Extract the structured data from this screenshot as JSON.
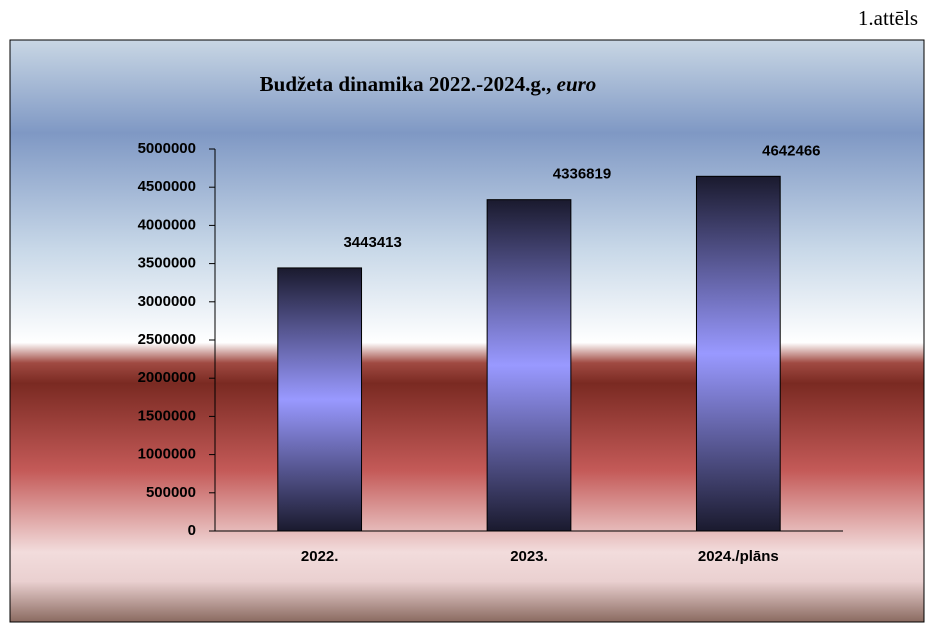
{
  "caption": "1.attēls",
  "chart_data": {
    "type": "bar",
    "title": "Budžeta dinamika  2022.-2024.g.,",
    "title_unit": "euro",
    "categories": [
      "2022.",
      "2023.",
      "2024./plāns"
    ],
    "values": [
      3443413,
      4336819,
      4642466
    ],
    "color": "#9999ff",
    "ylim": [
      0,
      5000000
    ],
    "yticks": [
      0,
      500000,
      1000000,
      1500000,
      2000000,
      2500000,
      3000000,
      3500000,
      4000000,
      4500000,
      5000000
    ],
    "grid": false
  }
}
